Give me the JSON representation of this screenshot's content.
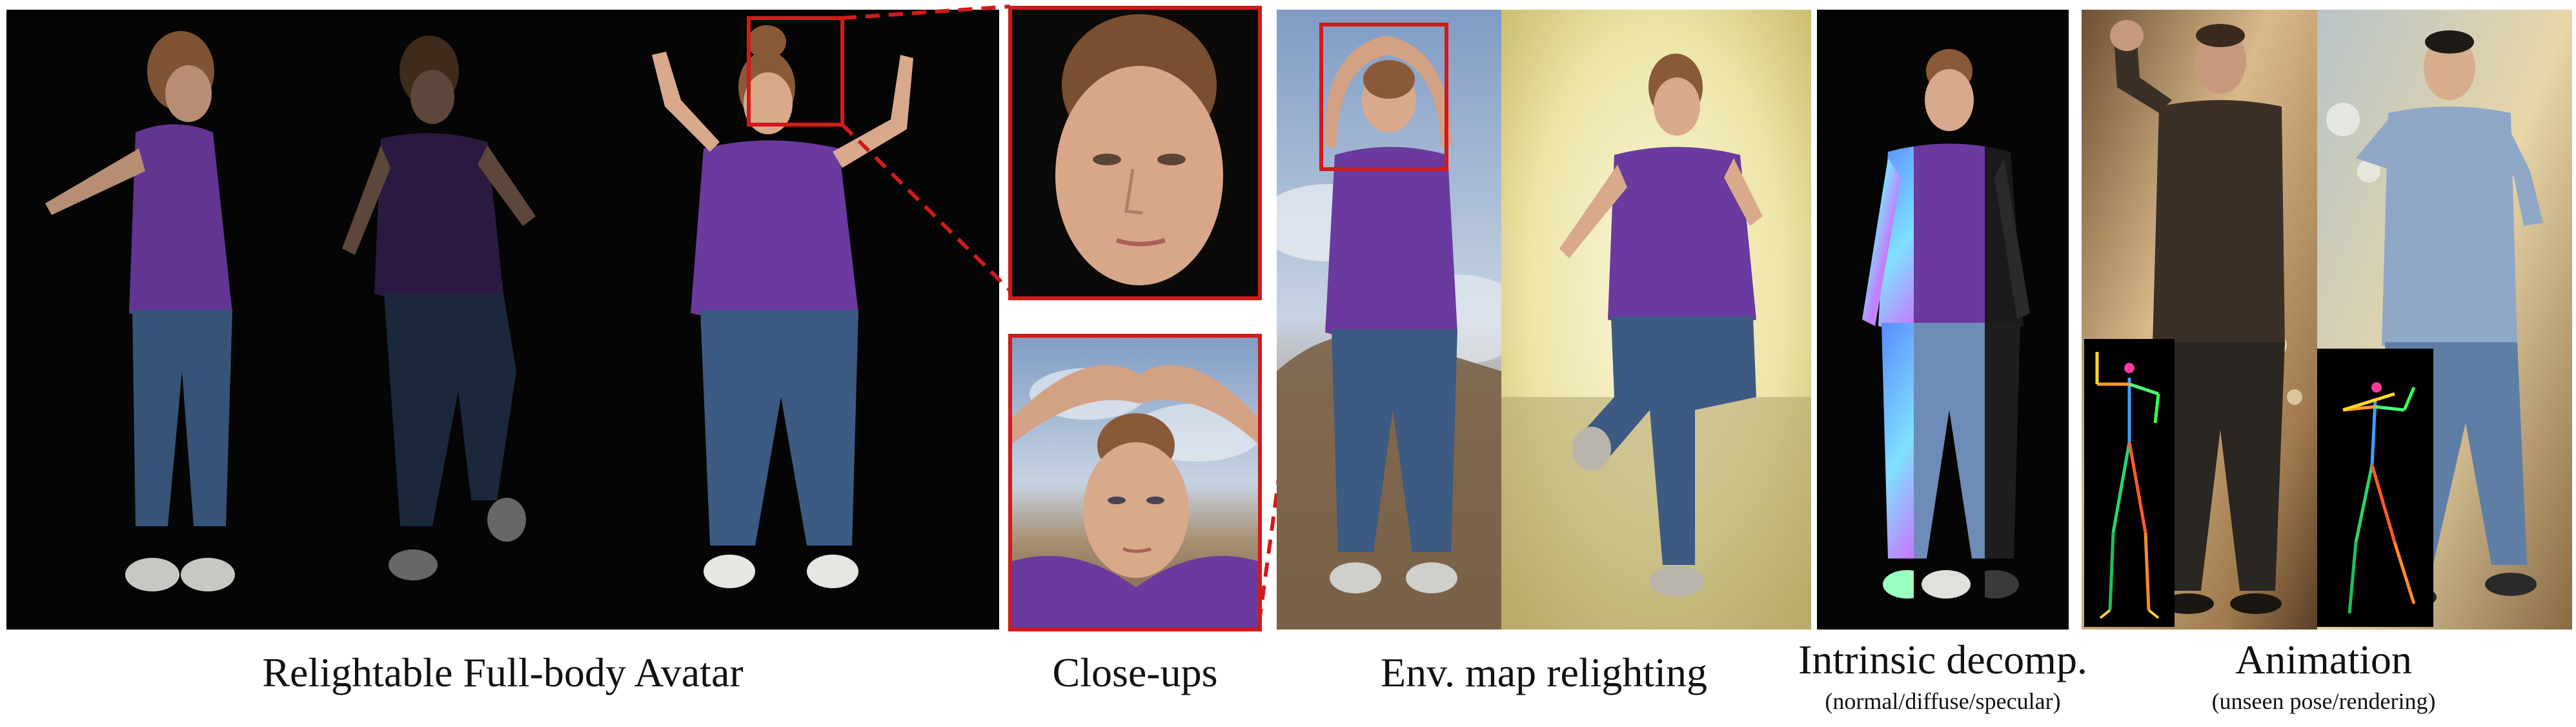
{
  "figure": {
    "captions": {
      "full_body": "Relightable Full-body Avatar",
      "closeups": "Close-ups",
      "env_map": "Env. map relighting",
      "intrinsic": "Intrinsic decomp.",
      "intrinsic_sub": "(normal/diffuse/specular)",
      "animation": "Animation",
      "animation_sub": "(unseen pose/rendering)"
    },
    "colors": {
      "accent_red": "#d11a1a",
      "shirt_purple": "#6a3a9e",
      "jeans_blue": "#3c5a82",
      "skin": "#d9a98c",
      "hair": "#8a5a38",
      "black_bg": "#050505",
      "sky_blue": "#8fa9c9",
      "warm_yellow": "#eee9b0",
      "indoor_orange": "#c9a77a"
    },
    "panels": [
      "full-body-avatars",
      "closeup-face",
      "closeup-arms-raised",
      "env-map-sky",
      "env-map-indoor",
      "intrinsic-decomposition",
      "animation-man-1",
      "animation-man-2"
    ]
  }
}
